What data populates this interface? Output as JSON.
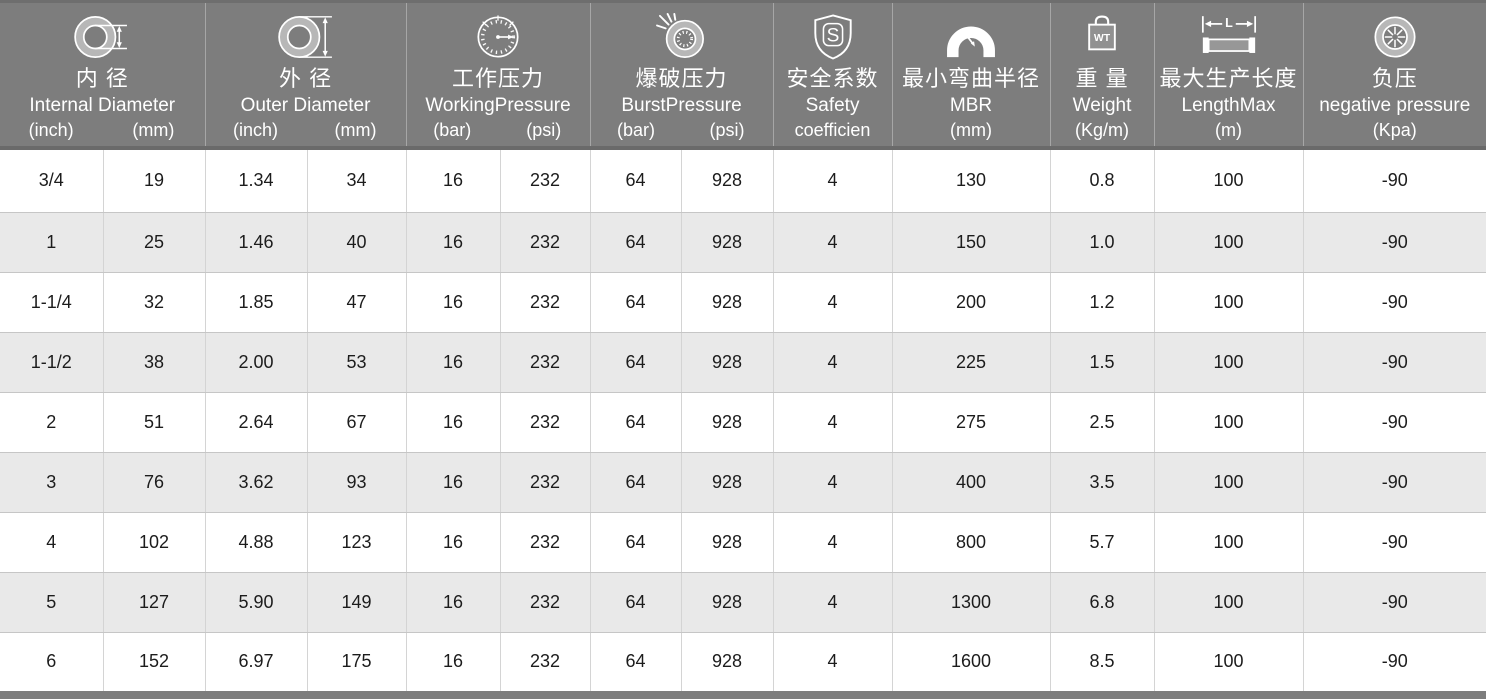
{
  "colors": {
    "header_bg": "#7d7d7d",
    "header_text": "#ffffff",
    "header_divider": "#a6a6a6",
    "header_edge_dark": "#6a6a6a",
    "row_white": "#ffffff",
    "row_alt": "#e9e9e9",
    "grid_line": "#d4d4d4",
    "body_text": "#1c1c1c"
  },
  "header": {
    "column_groups": [
      {
        "id": "internal-diameter",
        "icon": "internal-diameter-icon",
        "zh": "内 径",
        "en": "Internal Diameter",
        "sub_labels": [
          "(inch)",
          "(mm)"
        ]
      },
      {
        "id": "outer-diameter",
        "icon": "outer-diameter-icon",
        "zh": "外 径",
        "en": "Outer Diameter",
        "sub_labels": [
          "(inch)",
          "(mm)"
        ]
      },
      {
        "id": "working-pressure",
        "icon": "working-pressure-icon",
        "zh": "工作压力",
        "en": "WorkingPressure",
        "sub_labels": [
          "(bar)",
          "(psi)"
        ]
      },
      {
        "id": "burst-pressure",
        "icon": "burst-pressure-icon",
        "zh": "爆破压力",
        "en": "BurstPressure",
        "sub_labels": [
          "(bar)",
          "(psi)"
        ]
      },
      {
        "id": "safety-coefficient",
        "icon": "safety-icon",
        "zh": "安全系数",
        "en": "Safety",
        "sub_labels": [
          "coefficien"
        ]
      },
      {
        "id": "min-bend-radius",
        "icon": "mbr-icon",
        "zh": "最小弯曲半径",
        "en": "MBR",
        "sub_labels": [
          "(mm)"
        ]
      },
      {
        "id": "weight",
        "icon": "weight-icon",
        "zh": "重 量",
        "en": "Weight",
        "sub_labels": [
          "(Kg/m)"
        ]
      },
      {
        "id": "length-max",
        "icon": "length-max-icon",
        "zh": "最大生产长度",
        "en": "LengthMax",
        "sub_labels": [
          "(m)"
        ]
      },
      {
        "id": "negative-pressure",
        "icon": "negative-pressure-icon",
        "zh": "负压",
        "en": "negative pressure",
        "sub_labels": [
          "(Kpa)"
        ]
      }
    ]
  },
  "chart_data": {
    "type": "table",
    "columns": [
      "Internal Diameter (inch)",
      "Internal Diameter (mm)",
      "Outer Diameter (inch)",
      "Outer Diameter (mm)",
      "WorkingPressure (bar)",
      "WorkingPressure (psi)",
      "BurstPressure (bar)",
      "BurstPressure (psi)",
      "Safety coefficien",
      "MBR (mm)",
      "Weight (Kg/m)",
      "LengthMax (m)",
      "negative pressure (Kpa)"
    ],
    "rows": [
      [
        "3/4",
        "19",
        "1.34",
        "34",
        "16",
        "232",
        "64",
        "928",
        "4",
        "130",
        "0.8",
        "100",
        "-90"
      ],
      [
        "1",
        "25",
        "1.46",
        "40",
        "16",
        "232",
        "64",
        "928",
        "4",
        "150",
        "1.0",
        "100",
        "-90"
      ],
      [
        "1-1/4",
        "32",
        "1.85",
        "47",
        "16",
        "232",
        "64",
        "928",
        "4",
        "200",
        "1.2",
        "100",
        "-90"
      ],
      [
        "1-1/2",
        "38",
        "2.00",
        "53",
        "16",
        "232",
        "64",
        "928",
        "4",
        "225",
        "1.5",
        "100",
        "-90"
      ],
      [
        "2",
        "51",
        "2.64",
        "67",
        "16",
        "232",
        "64",
        "928",
        "4",
        "275",
        "2.5",
        "100",
        "-90"
      ],
      [
        "3",
        "76",
        "3.62",
        "93",
        "16",
        "232",
        "64",
        "928",
        "4",
        "400",
        "3.5",
        "100",
        "-90"
      ],
      [
        "4",
        "102",
        "4.88",
        "123",
        "16",
        "232",
        "64",
        "928",
        "4",
        "800",
        "5.7",
        "100",
        "-90"
      ],
      [
        "5",
        "127",
        "5.90",
        "149",
        "16",
        "232",
        "64",
        "928",
        "4",
        "1300",
        "6.8",
        "100",
        "-90"
      ],
      [
        "6",
        "152",
        "6.97",
        "175",
        "16",
        "232",
        "64",
        "928",
        "4",
        "1600",
        "8.5",
        "100",
        "-90"
      ]
    ]
  }
}
